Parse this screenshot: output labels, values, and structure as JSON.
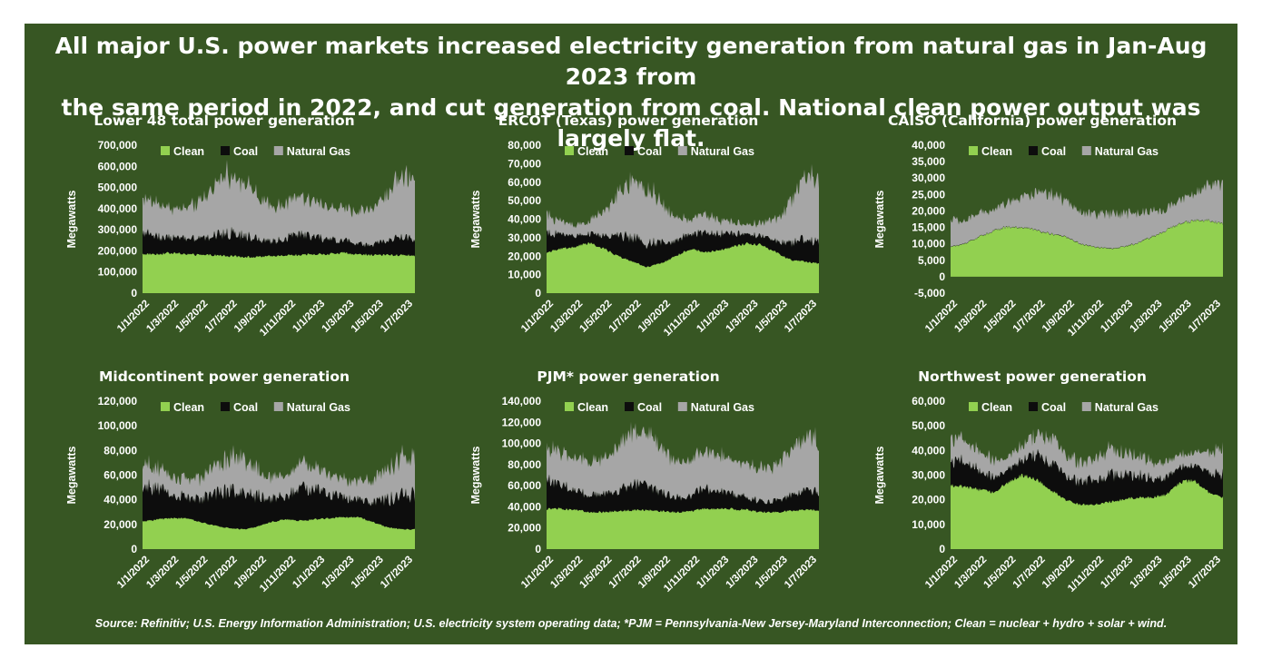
{
  "headline_line1": "All major U.S. power markets increased electricity generation from natural gas in Jan-Aug 2023 from",
  "headline_line2": "the same period in 2022, and cut generation from coal. National clean power output was largely flat.",
  "source": "Source: Refinitiv; U.S. Energy Information Administration; U.S. electricity system operating data; *PJM = Pennsylvania-New Jersey-Maryland Interconnection; Clean = nuclear + hydro + solar + wind.",
  "colors": {
    "background": "#375623",
    "clean": "#92D050",
    "coal": "#0D0D0D",
    "natural_gas": "#A6A6A6",
    "text": "#ffffff"
  },
  "chart_data": [
    {
      "type": "area",
      "title": "Lower 48 total power generation",
      "ylabel": "Megawatts",
      "ylim": [
        0,
        700000
      ],
      "yticks": [
        "700,000",
        "600,000",
        "500,000",
        "400,000",
        "300,000",
        "200,000",
        "100,000",
        "0"
      ],
      "xticks": [
        "1/1/2022",
        "1/3/2022",
        "1/5/2022",
        "1/7/2022",
        "1/9/2022",
        "1/11/2022",
        "1/1/2023",
        "1/3/2023",
        "1/5/2023",
        "1/7/2023"
      ],
      "x": [
        "2022-01",
        "2022-02",
        "2022-03",
        "2022-04",
        "2022-05",
        "2022-06",
        "2022-07",
        "2022-08",
        "2022-09",
        "2022-10",
        "2022-11",
        "2022-12",
        "2023-01",
        "2023-02",
        "2023-03",
        "2023-04",
        "2023-05",
        "2023-06",
        "2023-07",
        "2023-08"
      ],
      "legend": [
        "Clean",
        "Coal",
        "Natural Gas"
      ],
      "series": [
        {
          "name": "Clean",
          "values": [
            185000,
            185000,
            190000,
            185000,
            180000,
            180000,
            175000,
            172000,
            170000,
            175000,
            180000,
            180000,
            185000,
            185000,
            190000,
            185000,
            180000,
            180000,
            180000,
            178000
          ]
        },
        {
          "name": "Coal",
          "values": [
            100000,
            85000,
            75000,
            70000,
            75000,
            95000,
            110000,
            105000,
            85000,
            70000,
            80000,
            100000,
            80000,
            70000,
            60000,
            50000,
            50000,
            70000,
            85000,
            85000
          ]
        },
        {
          "name": "Natural Gas",
          "values": [
            165000,
            150000,
            140000,
            140000,
            175000,
            235000,
            280000,
            260000,
            200000,
            160000,
            165000,
            175000,
            160000,
            155000,
            145000,
            150000,
            170000,
            220000,
            285000,
            280000
          ]
        }
      ]
    },
    {
      "type": "area",
      "title": "ERCOT (Texas) power generation",
      "ylabel": "Megawatts",
      "ylim": [
        0,
        80000
      ],
      "yticks": [
        "80,000",
        "70,000",
        "60,000",
        "50,000",
        "40,000",
        "30,000",
        "20,000",
        "10,000",
        "0"
      ],
      "xticks": [
        "1/1/2022",
        "1/3/2022",
        "1/5/2022",
        "1/7/2022",
        "1/9/2022",
        "1/11/2022",
        "1/1/2023",
        "1/3/2023",
        "1/5/2023",
        "1/7/2023"
      ],
      "x": [
        "2022-01",
        "2022-02",
        "2022-03",
        "2022-04",
        "2022-05",
        "2022-06",
        "2022-07",
        "2022-08",
        "2022-09",
        "2022-10",
        "2022-11",
        "2022-12",
        "2023-01",
        "2023-02",
        "2023-03",
        "2023-04",
        "2023-05",
        "2023-06",
        "2023-07",
        "2023-08"
      ],
      "legend": [
        "Clean",
        "Coal",
        "Natural Gas"
      ],
      "series": [
        {
          "name": "Clean",
          "values": [
            22000,
            24000,
            25000,
            27000,
            24000,
            20000,
            17000,
            14000,
            16000,
            20000,
            24000,
            22000,
            23000,
            25000,
            27000,
            26000,
            22000,
            18000,
            17000,
            16000
          ]
        },
        {
          "name": "Coal",
          "values": [
            10000,
            8000,
            6000,
            5000,
            7000,
            11000,
            13000,
            13000,
            11000,
            8000,
            8000,
            10000,
            9000,
            7000,
            5000,
            5000,
            6000,
            9000,
            12000,
            12000
          ]
        },
        {
          "name": "Natural Gas",
          "values": [
            10000,
            7000,
            6000,
            7000,
            13000,
            22000,
            30000,
            30000,
            22000,
            12000,
            8000,
            10000,
            8000,
            6000,
            5000,
            7000,
            12000,
            22000,
            34000,
            34000
          ]
        }
      ]
    },
    {
      "type": "area",
      "title": "CAISO (California) power generation",
      "ylabel": "Megawatts",
      "ylim": [
        -5000,
        40000
      ],
      "yticks": [
        "40,000",
        "35,000",
        "30,000",
        "25,000",
        "20,000",
        "15,000",
        "10,000",
        "5,000",
        "0",
        "-5,000"
      ],
      "xticks": [
        "1/1/2022",
        "1/3/2022",
        "1/5/2022",
        "1/7/2022",
        "1/9/2022",
        "1/11/2022",
        "1/1/2023",
        "1/3/2023",
        "1/5/2023",
        "1/7/2023"
      ],
      "x": [
        "2022-01",
        "2022-02",
        "2022-03",
        "2022-04",
        "2022-05",
        "2022-06",
        "2022-07",
        "2022-08",
        "2022-09",
        "2022-10",
        "2022-11",
        "2022-12",
        "2023-01",
        "2023-02",
        "2023-03",
        "2023-04",
        "2023-05",
        "2023-06",
        "2023-07",
        "2023-08"
      ],
      "legend": [
        "Clean",
        "Coal",
        "Natural Gas"
      ],
      "series": [
        {
          "name": "Clean",
          "values": [
            9000,
            10000,
            12000,
            14000,
            15000,
            15000,
            14000,
            13000,
            12000,
            10000,
            9000,
            8500,
            9000,
            10000,
            12000,
            14000,
            16000,
            17000,
            17000,
            16000
          ]
        },
        {
          "name": "Coal",
          "values": [
            100,
            100,
            100,
            100,
            100,
            100,
            100,
            100,
            100,
            100,
            100,
            100,
            100,
            100,
            100,
            100,
            100,
            100,
            100,
            100
          ]
        },
        {
          "name": "Natural Gas",
          "values": [
            8000,
            7000,
            7000,
            6500,
            7500,
            9000,
            11000,
            12000,
            11000,
            10000,
            10000,
            10500,
            10000,
            9000,
            8000,
            6500,
            7000,
            8000,
            11000,
            12000
          ]
        }
      ]
    },
    {
      "type": "area",
      "title": "Midcontinent power generation",
      "ylabel": "Megawatts",
      "ylim": [
        0,
        120000
      ],
      "yticks": [
        "120,000",
        "100,000",
        "80,000",
        "60,000",
        "40,000",
        "20,000",
        "0"
      ],
      "xticks": [
        "1/1/2022",
        "1/3/2022",
        "1/5/2022",
        "1/7/2022",
        "1/9/2022",
        "1/11/2022",
        "1/1/2023",
        "1/3/2023",
        "1/5/2023",
        "1/7/2023"
      ],
      "x": [
        "2022-01",
        "2022-02",
        "2022-03",
        "2022-04",
        "2022-05",
        "2022-06",
        "2022-07",
        "2022-08",
        "2022-09",
        "2022-10",
        "2022-11",
        "2022-12",
        "2023-01",
        "2023-02",
        "2023-03",
        "2023-04",
        "2023-05",
        "2023-06",
        "2023-07",
        "2023-08"
      ],
      "legend": [
        "Clean",
        "Coal",
        "Natural Gas"
      ],
      "series": [
        {
          "name": "Clean",
          "values": [
            22000,
            24000,
            25000,
            25000,
            22000,
            19000,
            17000,
            16000,
            18000,
            22000,
            24000,
            23000,
            24000,
            25000,
            26000,
            26000,
            22000,
            18000,
            16000,
            16000
          ]
        },
        {
          "name": "Coal",
          "values": [
            30000,
            25000,
            20000,
            17000,
            18000,
            25000,
            30000,
            30000,
            25000,
            18000,
            20000,
            28000,
            25000,
            20000,
            16000,
            14000,
            16000,
            22000,
            28000,
            28000
          ]
        },
        {
          "name": "Natural Gas",
          "values": [
            18000,
            16000,
            15000,
            15000,
            17000,
            22000,
            28000,
            28000,
            22000,
            16000,
            17000,
            20000,
            18000,
            16000,
            15000,
            15000,
            18000,
            24000,
            30000,
            30000
          ]
        }
      ]
    },
    {
      "type": "area",
      "title": "PJM* power generation",
      "ylabel": "Megawatts",
      "ylim": [
        0,
        140000
      ],
      "yticks": [
        "140,000",
        "120,000",
        "100,000",
        "80,000",
        "60,000",
        "40,000",
        "20,000",
        "0"
      ],
      "xticks": [
        "1/1/2022",
        "1/3/2022",
        "1/5/2022",
        "1/7/2022",
        "1/9/2022",
        "1/11/2022",
        "1/1/2023",
        "1/3/2023",
        "1/5/2023",
        "1/7/2023"
      ],
      "x": [
        "2022-01",
        "2022-02",
        "2022-03",
        "2022-04",
        "2022-05",
        "2022-06",
        "2022-07",
        "2022-08",
        "2022-09",
        "2022-10",
        "2022-11",
        "2022-12",
        "2023-01",
        "2023-02",
        "2023-03",
        "2023-04",
        "2023-05",
        "2023-06",
        "2023-07",
        "2023-08"
      ],
      "legend": [
        "Clean",
        "Coal",
        "Natural Gas"
      ],
      "series": [
        {
          "name": "Clean",
          "values": [
            38000,
            38000,
            37000,
            35000,
            35000,
            36000,
            37000,
            37000,
            36000,
            35000,
            36000,
            38000,
            38000,
            38000,
            37000,
            35000,
            35000,
            36000,
            37000,
            37000
          ]
        },
        {
          "name": "Coal",
          "values": [
            28000,
            22000,
            18000,
            16000,
            16000,
            20000,
            24000,
            24000,
            18000,
            14000,
            14000,
            20000,
            16000,
            14000,
            12000,
            10000,
            11000,
            14000,
            18000,
            18000
          ]
        },
        {
          "name": "Natural Gas",
          "values": [
            32000,
            30000,
            30000,
            30000,
            34000,
            42000,
            50000,
            50000,
            42000,
            34000,
            32000,
            34000,
            34000,
            32000,
            32000,
            32000,
            34000,
            42000,
            50000,
            50000
          ]
        }
      ]
    },
    {
      "type": "area",
      "title": "Northwest power generation",
      "ylabel": "Megawatts",
      "ylim": [
        0,
        60000
      ],
      "yticks": [
        "60,000",
        "50,000",
        "40,000",
        "30,000",
        "20,000",
        "10,000",
        "0"
      ],
      "xticks": [
        "1/1/2022",
        "1/3/2022",
        "1/5/2022",
        "1/7/2022",
        "1/9/2022",
        "1/11/2022",
        "1/1/2023",
        "1/3/2023",
        "1/5/2023",
        "1/7/2023"
      ],
      "x": [
        "2022-01",
        "2022-02",
        "2022-03",
        "2022-04",
        "2022-05",
        "2022-06",
        "2022-07",
        "2022-08",
        "2022-09",
        "2022-10",
        "2022-11",
        "2022-12",
        "2023-01",
        "2023-02",
        "2023-03",
        "2023-04",
        "2023-05",
        "2023-06",
        "2023-07",
        "2023-08"
      ],
      "legend": [
        "Clean",
        "Coal",
        "Natural Gas"
      ],
      "series": [
        {
          "name": "Clean",
          "values": [
            26000,
            25000,
            24000,
            23000,
            27000,
            30000,
            28000,
            24000,
            20000,
            18000,
            18000,
            19000,
            20000,
            21000,
            21000,
            22000,
            27000,
            28000,
            23000,
            21000
          ]
        },
        {
          "name": "Coal",
          "values": [
            10000,
            10000,
            8000,
            6000,
            5000,
            6000,
            10000,
            11000,
            10000,
            9000,
            10000,
            11000,
            10000,
            9000,
            8000,
            7000,
            6000,
            6000,
            8000,
            9000
          ]
        },
        {
          "name": "Natural Gas",
          "values": [
            10000,
            9000,
            8000,
            7000,
            5000,
            6000,
            8000,
            10000,
            9000,
            8000,
            9000,
            10000,
            9000,
            8000,
            7000,
            6000,
            5000,
            5000,
            8000,
            10000
          ]
        }
      ]
    }
  ]
}
